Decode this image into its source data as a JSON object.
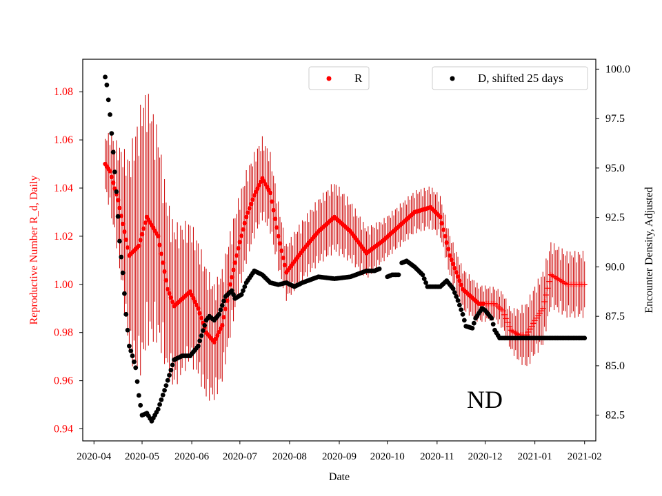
{
  "chart_data": {
    "type": "scatter",
    "title": "",
    "annotation": "ND",
    "xlabel": "Date",
    "ylabel": "Reproductive Number R_d, Daily",
    "y2label": "Encounter Density, Adjusted",
    "x_tick_labels": [
      "2020-04",
      "2020-05",
      "2020-06",
      "2020-07",
      "2020-08",
      "2020-09",
      "2020-10",
      "2020-11",
      "2020-12",
      "2021-01",
      "2021-02"
    ],
    "x_tick_days": [
      0,
      30,
      61,
      91,
      122,
      153,
      183,
      214,
      244,
      275,
      306
    ],
    "xlim": [
      -7,
      313
    ],
    "ylim": [
      0.935,
      1.0935
    ],
    "y_ticks": [
      0.94,
      0.96,
      0.98,
      1.0,
      1.02,
      1.04,
      1.06,
      1.08
    ],
    "y_tick_labels": [
      "0.94",
      "0.96",
      "0.98",
      "1.00",
      "1.02",
      "1.04",
      "1.06",
      "1.08"
    ],
    "y2lim": [
      81.2,
      100.5
    ],
    "y2_ticks": [
      82.5,
      85.0,
      87.5,
      90.0,
      92.5,
      95.0,
      97.5,
      100.0
    ],
    "y2_tick_labels": [
      "82.5",
      "85.0",
      "87.5",
      "90.0",
      "92.5",
      "95.0",
      "97.5",
      "100.0"
    ],
    "colors": {
      "R": "#ff0000",
      "errorbar": "#cc0000",
      "D": "#000000",
      "ytext": "#ff0000"
    },
    "legend": {
      "R": {
        "label": "R",
        "placement": "top-center"
      },
      "D": {
        "label": "D, shifted 25 days",
        "placement": "top-right"
      }
    },
    "series": [
      {
        "name": "R",
        "axis": "left",
        "marker": "dot",
        "error_bars": true,
        "knots_day": [
          7,
          10,
          15,
          22,
          28,
          33,
          40,
          46,
          50,
          55,
          60,
          65,
          70,
          75,
          80,
          85,
          90,
          95,
          100,
          105,
          110,
          115,
          120,
          130,
          140,
          150,
          160,
          170,
          180,
          190,
          200,
          210,
          216,
          222,
          230,
          240,
          250,
          255,
          260,
          265,
          270,
          275,
          280,
          285,
          290,
          295,
          300,
          306
        ],
        "knots_value": [
          1.05,
          1.047,
          1.035,
          1.012,
          1.016,
          1.028,
          1.02,
          0.998,
          0.991,
          0.994,
          0.997,
          0.99,
          0.98,
          0.976,
          0.983,
          1.0,
          1.015,
          1.028,
          1.037,
          1.044,
          1.038,
          1.02,
          1.005,
          1.014,
          1.022,
          1.028,
          1.022,
          1.013,
          1.018,
          1.024,
          1.03,
          1.032,
          1.028,
          1.012,
          0.998,
          0.992,
          0.992,
          0.989,
          0.981,
          0.979,
          0.979,
          0.985,
          0.99,
          1.004,
          1.002,
          1.0,
          1.0,
          1.0
        ],
        "err_knots_day": [
          7,
          15,
          25,
          30,
          45,
          55,
          60,
          70,
          75,
          80,
          90,
          100,
          110,
          120,
          150,
          180,
          210,
          230,
          250,
          260,
          270,
          280,
          285,
          306
        ],
        "err_knots_value": [
          0.012,
          0.024,
          0.05,
          0.058,
          0.038,
          0.032,
          0.03,
          0.028,
          0.025,
          0.024,
          0.021,
          0.018,
          0.017,
          0.012,
          0.015,
          0.009,
          0.009,
          0.009,
          0.007,
          0.009,
          0.014,
          0.016,
          0.014,
          0.014
        ],
        "plus_marker_from_day": 244
      },
      {
        "name": "D, shifted 25 days",
        "axis": "right",
        "marker": "dot",
        "error_bars": false,
        "knots_day": [
          7,
          8,
          10,
          12,
          14,
          16,
          18,
          20,
          22,
          24,
          26,
          28,
          30,
          33,
          36,
          40,
          45,
          50,
          55,
          60,
          65,
          70,
          72,
          75,
          78,
          82,
          86,
          88,
          90,
          92,
          95,
          100,
          105,
          110,
          115,
          120,
          125,
          130,
          140,
          150,
          160,
          170,
          175,
          178
        ],
        "knots_value": [
          99.6,
          99.2,
          97.7,
          95.8,
          93.8,
          91.3,
          89.7,
          87.6,
          86.0,
          85.5,
          84.9,
          83.5,
          82.5,
          82.6,
          82.2,
          82.8,
          84.0,
          85.3,
          85.5,
          85.5,
          86.0,
          87.3,
          87.5,
          87.3,
          87.6,
          88.5,
          88.8,
          88.4,
          88.5,
          88.6,
          89.2,
          89.8,
          89.6,
          89.2,
          89.1,
          89.2,
          89.0,
          89.2,
          89.5,
          89.4,
          89.5,
          89.8,
          89.8,
          89.9
        ],
        "segments": [
          {
            "knots_day": [
              183,
              186,
              190
            ],
            "knots_value": [
              89.5,
              89.6,
              89.6
            ]
          },
          {
            "knots_day": [
              192,
              195,
              200,
              205,
              208,
              212,
              216,
              220,
              224,
              227,
              230,
              232,
              236,
              238,
              242,
              244,
              248,
              250,
              253,
              256,
              260,
              270,
              280,
              290,
              306
            ],
            "knots_value": [
              90.2,
              90.3,
              90.0,
              89.6,
              89.0,
              89.0,
              89.0,
              89.3,
              88.9,
              88.3,
              87.6,
              87.0,
              86.9,
              87.4,
              87.9,
              87.8,
              87.4,
              86.8,
              86.4,
              86.4,
              86.4,
              86.4,
              86.4,
              86.4,
              86.4
            ]
          }
        ]
      }
    ]
  }
}
